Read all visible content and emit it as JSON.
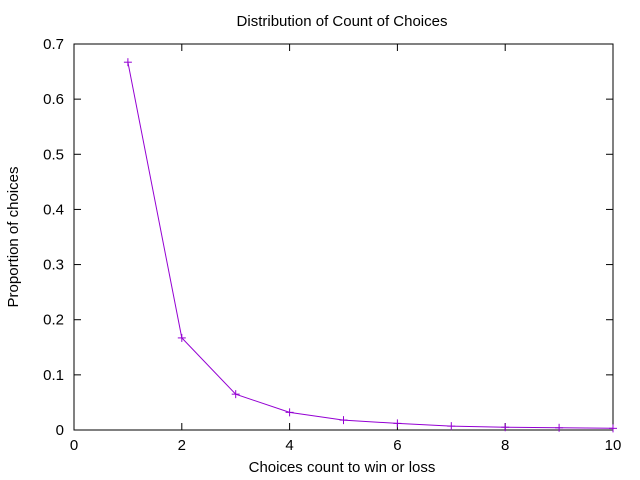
{
  "chart_data": {
    "type": "line",
    "title": "Distribution of Count of Choices",
    "xlabel": "Choices count to win or loss",
    "ylabel": "Proportion of choices",
    "xlim": [
      0,
      10
    ],
    "ylim": [
      0,
      0.7
    ],
    "x_ticks": [
      "0",
      "2",
      "4",
      "6",
      "8",
      "10"
    ],
    "y_ticks": [
      "0",
      "0.1",
      "0.2",
      "0.3",
      "0.4",
      "0.5",
      "0.6",
      "0.7"
    ],
    "grid": false,
    "legend": "none",
    "series": [
      {
        "color": "#9400d3",
        "marker": "plus",
        "x": [
          1,
          2,
          3,
          4,
          5,
          6,
          7,
          8,
          9,
          10
        ],
        "y": [
          0.667,
          0.167,
          0.065,
          0.032,
          0.018,
          0.012,
          0.007,
          0.005,
          0.004,
          0.003
        ]
      }
    ]
  }
}
